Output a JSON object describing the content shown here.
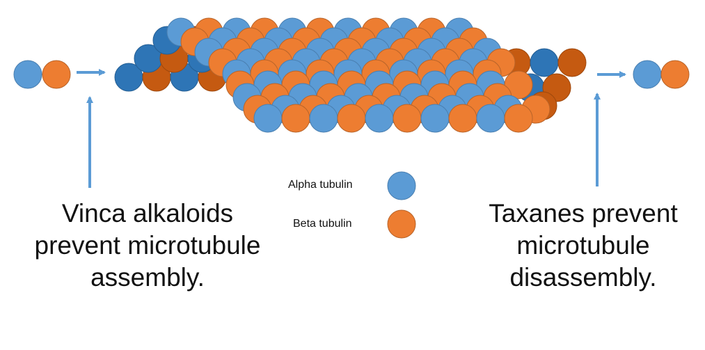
{
  "colors": {
    "alpha": "#5b9bd5",
    "beta": "#ed7d31",
    "alpha_dark": "#2e75b6",
    "beta_dark": "#c55a11",
    "arrow": "#5b9bd5"
  },
  "legend": {
    "alpha_label": "Alpha tubulin",
    "beta_label": "Beta tubulin"
  },
  "left_caption": {
    "lines": [
      "Vinca alkaloids",
      "prevent microtubule",
      "assembly."
    ]
  },
  "right_caption": {
    "lines": [
      "Taxanes prevent",
      "microtubule",
      "disassembly."
    ]
  },
  "free_dimer_left": [
    "alpha",
    "beta"
  ],
  "free_dimer_right": [
    "alpha",
    "beta"
  ]
}
